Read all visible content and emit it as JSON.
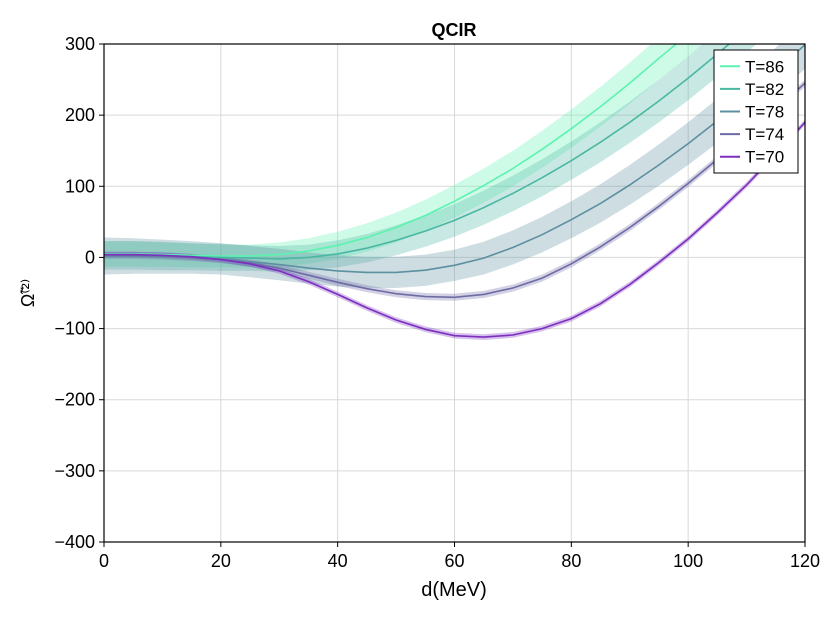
{
  "chart_data": {
    "type": "line",
    "title": "QCIR",
    "xlabel": "d(MeV)",
    "ylabel": "Ω̃⁽²⁾",
    "xlim": [
      0,
      120
    ],
    "ylim": [
      -400,
      300
    ],
    "xticks": [
      0,
      20,
      40,
      60,
      80,
      100,
      120
    ],
    "yticks": [
      -400,
      -300,
      -200,
      -100,
      0,
      100,
      200,
      300
    ],
    "grid": true,
    "legend_position": "top-right",
    "series": [
      {
        "name": "T=86",
        "color": "#5cf2b0",
        "x": [
          0,
          5,
          10,
          15,
          20,
          25,
          30,
          35,
          40,
          45,
          50,
          55,
          60,
          65,
          70,
          75,
          80,
          85,
          90,
          95,
          100,
          105,
          110
        ],
        "y": [
          5,
          5,
          4,
          3,
          2,
          2,
          4,
          9,
          17,
          28,
          42,
          59,
          79,
          101,
          125,
          152,
          181,
          212,
          245,
          280,
          314,
          350,
          385
        ],
        "band": [
          18,
          18,
          17,
          17,
          16,
          16,
          17,
          18,
          19,
          20,
          21,
          22,
          23,
          24,
          25,
          26,
          27,
          28,
          29,
          30,
          31,
          32,
          33
        ]
      },
      {
        "name": "T=82",
        "color": "#4ab7a3",
        "x": [
          0,
          5,
          10,
          15,
          20,
          25,
          30,
          35,
          40,
          45,
          50,
          55,
          60,
          65,
          70,
          75,
          80,
          85,
          90,
          95,
          100,
          105,
          110,
          115
        ],
        "y": [
          3,
          3,
          2,
          1,
          0,
          -1,
          -2,
          0,
          5,
          13,
          24,
          37,
          52,
          70,
          90,
          112,
          136,
          162,
          190,
          220,
          252,
          286,
          321,
          357
        ],
        "band": [
          20,
          20,
          20,
          19,
          19,
          18,
          18,
          18,
          19,
          20,
          21,
          22,
          23,
          24,
          25,
          26,
          27,
          28,
          29,
          30,
          31,
          32,
          33,
          34
        ]
      },
      {
        "name": "T=78",
        "color": "#5c8fa0",
        "x": [
          0,
          5,
          10,
          15,
          20,
          25,
          30,
          35,
          40,
          45,
          50,
          55,
          60,
          65,
          70,
          75,
          80,
          85,
          90,
          95,
          100,
          105,
          110,
          115,
          120
        ],
        "y": [
          2,
          2,
          1,
          0,
          -2,
          -6,
          -10,
          -15,
          -19,
          -21,
          -21,
          -18,
          -11,
          -1,
          14,
          32,
          53,
          76,
          102,
          130,
          160,
          192,
          226,
          262,
          299
        ],
        "band": [
          26,
          25,
          24,
          23,
          22,
          22,
          22,
          22,
          22,
          22,
          22,
          22,
          22,
          23,
          24,
          25,
          26,
          27,
          28,
          29,
          30,
          31,
          32,
          33,
          34
        ]
      },
      {
        "name": "T=74",
        "color": "#6d6ba6",
        "x": [
          0,
          5,
          10,
          15,
          20,
          25,
          30,
          35,
          40,
          45,
          50,
          55,
          60,
          65,
          70,
          75,
          80,
          85,
          90,
          95,
          100,
          105,
          110,
          115,
          120
        ],
        "y": [
          3,
          3,
          2,
          0,
          -3,
          -8,
          -15,
          -25,
          -35,
          -44,
          -51,
          -55,
          -56,
          -52,
          -43,
          -29,
          -9,
          15,
          42,
          72,
          104,
          138,
          173,
          208,
          245
        ],
        "band": [
          5,
          5,
          5,
          5,
          5,
          5,
          5,
          5,
          5,
          5,
          5,
          5,
          5,
          5,
          5,
          5,
          5,
          5,
          5,
          5,
          5,
          5,
          5,
          5,
          5
        ]
      },
      {
        "name": "T=70",
        "color": "#7b2fbf",
        "x": [
          0,
          5,
          10,
          15,
          20,
          25,
          30,
          35,
          40,
          45,
          50,
          55,
          60,
          65,
          70,
          75,
          80,
          85,
          90,
          95,
          100,
          105,
          110,
          115,
          120
        ],
        "y": [
          4,
          4,
          3,
          1,
          -3,
          -9,
          -19,
          -34,
          -52,
          -71,
          -88,
          -101,
          -110,
          -112,
          -109,
          -100,
          -86,
          -65,
          -38,
          -7,
          26,
          63,
          102,
          145,
          190
        ],
        "band": [
          4,
          4,
          4,
          4,
          4,
          4,
          4,
          4,
          4,
          4,
          4,
          4,
          4,
          4,
          4,
          4,
          4,
          4,
          4,
          4,
          4,
          4,
          4,
          4,
          4
        ]
      }
    ]
  }
}
